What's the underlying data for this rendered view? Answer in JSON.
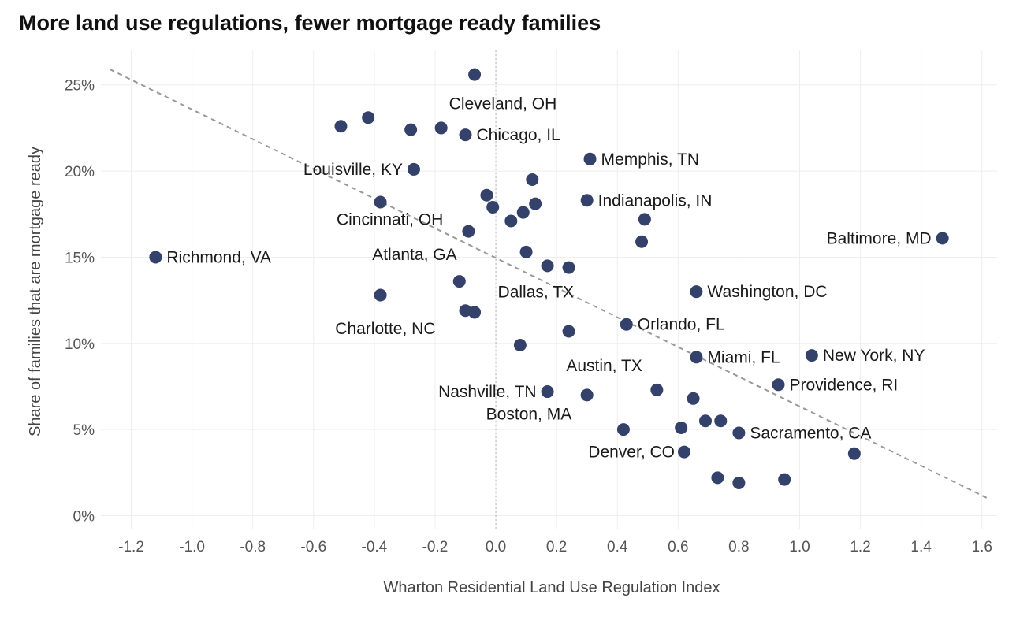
{
  "chart_data": {
    "type": "scatter",
    "title": "More land use regulations, fewer mortgage ready families",
    "xlabel": "Wharton Residential Land Use Regulation Index",
    "ylabel": "Share of families that are mortgage ready",
    "xlim": [
      -1.3,
      1.65
    ],
    "ylim": [
      -0.8,
      27
    ],
    "x_ticks": [
      -1.2,
      -1.0,
      -0.8,
      -0.6,
      -0.4,
      -0.2,
      0.0,
      0.2,
      0.4,
      0.6,
      0.8,
      1.0,
      1.2,
      1.4,
      1.6
    ],
    "x_tick_labels": [
      "-1.2",
      "-1.0",
      "-0.8",
      "-0.6",
      "-0.4",
      "-0.2",
      "0.0",
      "0.2",
      "0.4",
      "0.6",
      "0.8",
      "1.0",
      "1.2",
      "1.4",
      "1.6"
    ],
    "y_ticks": [
      0,
      5,
      10,
      15,
      20,
      25
    ],
    "y_tick_labels": [
      "0%",
      "5%",
      "10%",
      "15%",
      "20%",
      "25%"
    ],
    "grid": true,
    "reference_line_x": 0,
    "trendline": {
      "x1": -1.27,
      "y1": 25.9,
      "x2": 1.62,
      "y2": 1.0
    },
    "point_color": "#33416b",
    "trend_color": "#999999",
    "points": [
      {
        "x": -0.07,
        "y": 25.6,
        "label": ""
      },
      {
        "x": -0.51,
        "y": 22.6,
        "label": ""
      },
      {
        "x": -0.42,
        "y": 23.1,
        "label": ""
      },
      {
        "x": -0.28,
        "y": 22.4,
        "label": ""
      },
      {
        "x": -0.18,
        "y": 22.5,
        "label": "Cleveland, OH"
      },
      {
        "x": -0.1,
        "y": 22.1,
        "label": "Chicago, IL"
      },
      {
        "x": 0.31,
        "y": 20.7,
        "label": "Memphis, TN"
      },
      {
        "x": -0.27,
        "y": 20.1,
        "label": "Louisville, KY"
      },
      {
        "x": 0.12,
        "y": 19.5,
        "label": ""
      },
      {
        "x": -0.03,
        "y": 18.6,
        "label": ""
      },
      {
        "x": -0.01,
        "y": 17.9,
        "label": ""
      },
      {
        "x": 0.09,
        "y": 17.6,
        "label": ""
      },
      {
        "x": 0.05,
        "y": 17.1,
        "label": ""
      },
      {
        "x": 0.13,
        "y": 18.1,
        "label": ""
      },
      {
        "x": 0.3,
        "y": 18.3,
        "label": "Indianapolis, IN"
      },
      {
        "x": -0.38,
        "y": 18.2,
        "label": ""
      },
      {
        "x": -0.09,
        "y": 16.5,
        "label": "Cincinnati, OH"
      },
      {
        "x": 0.49,
        "y": 17.2,
        "label": ""
      },
      {
        "x": 0.48,
        "y": 15.9,
        "label": ""
      },
      {
        "x": 1.47,
        "y": 16.1,
        "label": "Baltimore, MD"
      },
      {
        "x": -1.12,
        "y": 15.0,
        "label": "Richmond, VA"
      },
      {
        "x": 0.1,
        "y": 15.3,
        "label": "Atlanta, GA"
      },
      {
        "x": 0.17,
        "y": 14.5,
        "label": ""
      },
      {
        "x": 0.24,
        "y": 14.4,
        "label": "Dallas, TX"
      },
      {
        "x": -0.12,
        "y": 13.6,
        "label": ""
      },
      {
        "x": 0.66,
        "y": 13.0,
        "label": "Washington, DC"
      },
      {
        "x": -0.38,
        "y": 12.8,
        "label": ""
      },
      {
        "x": -0.1,
        "y": 11.9,
        "label": "Charlotte, NC"
      },
      {
        "x": -0.07,
        "y": 11.8,
        "label": ""
      },
      {
        "x": 0.43,
        "y": 11.1,
        "label": "Orlando, FL"
      },
      {
        "x": 0.24,
        "y": 10.7,
        "label": ""
      },
      {
        "x": 0.08,
        "y": 9.9,
        "label": ""
      },
      {
        "x": 0.66,
        "y": 9.2,
        "label": "Miami, FL"
      },
      {
        "x": 1.04,
        "y": 9.3,
        "label": "New York, NY"
      },
      {
        "x": 0.93,
        "y": 7.6,
        "label": "Providence, RI"
      },
      {
        "x": 0.53,
        "y": 7.3,
        "label": "Austin, TX"
      },
      {
        "x": 0.17,
        "y": 7.2,
        "label": "Nashville, TN"
      },
      {
        "x": 0.3,
        "y": 7.0,
        "label": "Boston, MA"
      },
      {
        "x": 0.65,
        "y": 6.8,
        "label": ""
      },
      {
        "x": 0.69,
        "y": 5.5,
        "label": ""
      },
      {
        "x": 0.74,
        "y": 5.5,
        "label": ""
      },
      {
        "x": 0.42,
        "y": 5.0,
        "label": ""
      },
      {
        "x": 0.61,
        "y": 5.1,
        "label": ""
      },
      {
        "x": 0.8,
        "y": 4.8,
        "label": "Sacramento, CA"
      },
      {
        "x": 0.62,
        "y": 3.7,
        "label": "Denver, CO"
      },
      {
        "x": 1.18,
        "y": 3.6,
        "label": ""
      },
      {
        "x": 0.73,
        "y": 2.2,
        "label": ""
      },
      {
        "x": 0.8,
        "y": 1.9,
        "label": ""
      },
      {
        "x": 0.95,
        "y": 2.1,
        "label": ""
      }
    ]
  }
}
